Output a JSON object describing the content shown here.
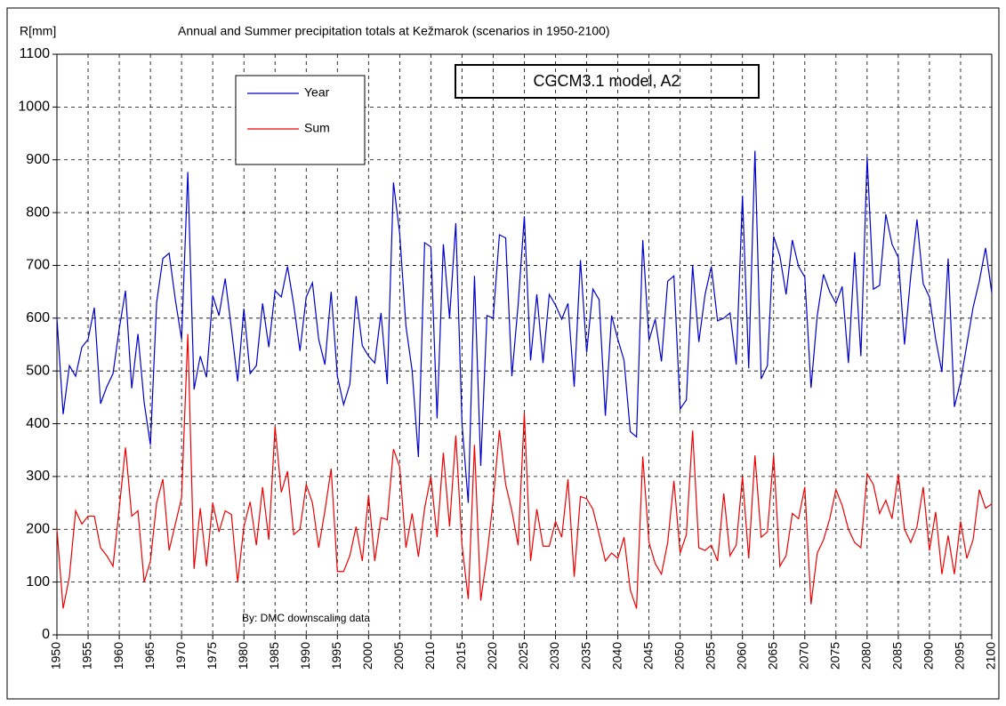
{
  "chart_data": {
    "type": "line",
    "title": "Annual and Summer precipitation totals at Kežmarok (scenarios in 1950-2100)",
    "y_label": "R[mm]",
    "model_label": "CGCM3.1 model, A2",
    "annotation": "By: DMC downscaling data",
    "grid": true,
    "legend": "top-left",
    "xlim": [
      1950,
      2100
    ],
    "ylim": [
      0,
      1100
    ],
    "xticks": [
      1950,
      1955,
      1960,
      1965,
      1970,
      1975,
      1980,
      1985,
      1990,
      1995,
      2000,
      2005,
      2010,
      2015,
      2020,
      2025,
      2030,
      2035,
      2040,
      2045,
      2050,
      2055,
      2060,
      2065,
      2070,
      2075,
      2080,
      2085,
      2090,
      2095,
      2100
    ],
    "yticks": [
      0,
      100,
      200,
      300,
      400,
      500,
      600,
      700,
      800,
      900,
      1000,
      1100
    ],
    "x": [
      1950,
      1951,
      1952,
      1953,
      1954,
      1955,
      1956,
      1957,
      1958,
      1959,
      1960,
      1961,
      1962,
      1963,
      1964,
      1965,
      1966,
      1967,
      1968,
      1969,
      1970,
      1971,
      1972,
      1973,
      1974,
      1975,
      1976,
      1977,
      1978,
      1979,
      1980,
      1981,
      1982,
      1983,
      1984,
      1985,
      1986,
      1987,
      1988,
      1989,
      1990,
      1991,
      1992,
      1993,
      1994,
      1995,
      1996,
      1997,
      1998,
      1999,
      2000,
      2001,
      2002,
      2003,
      2004,
      2005,
      2006,
      2007,
      2008,
      2009,
      2010,
      2011,
      2012,
      2013,
      2014,
      2015,
      2016,
      2017,
      2018,
      2019,
      2020,
      2021,
      2022,
      2023,
      2024,
      2025,
      2026,
      2027,
      2028,
      2029,
      2030,
      2031,
      2032,
      2033,
      2034,
      2035,
      2036,
      2037,
      2038,
      2039,
      2040,
      2041,
      2042,
      2043,
      2044,
      2045,
      2046,
      2047,
      2048,
      2049,
      2050,
      2051,
      2052,
      2053,
      2054,
      2055,
      2056,
      2057,
      2058,
      2059,
      2060,
      2061,
      2062,
      2063,
      2064,
      2065,
      2066,
      2067,
      2068,
      2069,
      2070,
      2071,
      2072,
      2073,
      2074,
      2075,
      2076,
      2077,
      2078,
      2079,
      2080,
      2081,
      2082,
      2083,
      2084,
      2085,
      2086,
      2087,
      2088,
      2089,
      2090,
      2091,
      2092,
      2093,
      2094,
      2095,
      2096,
      2097,
      2098,
      2099,
      2100
    ],
    "series": [
      {
        "name": "Year",
        "color": "#0000cc",
        "values": [
          600,
          418,
          510,
          490,
          545,
          560,
          620,
          438,
          470,
          495,
          580,
          652,
          467,
          570,
          440,
          360,
          630,
          713,
          723,
          635,
          560,
          877,
          465,
          528,
          488,
          643,
          605,
          675,
          580,
          480,
          618,
          495,
          510,
          628,
          545,
          652,
          640,
          698,
          625,
          538,
          640,
          667,
          560,
          512,
          650,
          490,
          436,
          475,
          642,
          548,
          528,
          515,
          610,
          475,
          857,
          760,
          585,
          500,
          337,
          743,
          735,
          410,
          740,
          600,
          780,
          400,
          250,
          680,
          320,
          605,
          600,
          758,
          752,
          490,
          625,
          793,
          520,
          645,
          515,
          645,
          625,
          598,
          628,
          470,
          710,
          535,
          655,
          635,
          415,
          605,
          560,
          520,
          385,
          375,
          748,
          558,
          598,
          518,
          670,
          680,
          428,
          445,
          700,
          555,
          645,
          698,
          595,
          600,
          610,
          512,
          832,
          505,
          917,
          485,
          510,
          755,
          718,
          645,
          748,
          698,
          678,
          468,
          605,
          683,
          650,
          628,
          660,
          515,
          725,
          528,
          905,
          655,
          662,
          797,
          740,
          715,
          550,
          680,
          787,
          665,
          640,
          560,
          498,
          713,
          432,
          480,
          550,
          620,
          670,
          733,
          648
        ]
      },
      {
        "name": "Sum",
        "color": "#ee0000",
        "values": [
          200,
          50,
          110,
          235,
          210,
          225,
          225,
          165,
          150,
          130,
          240,
          355,
          225,
          235,
          100,
          140,
          250,
          295,
          160,
          210,
          260,
          570,
          125,
          240,
          130,
          250,
          195,
          235,
          228,
          100,
          205,
          252,
          170,
          280,
          180,
          395,
          270,
          310,
          190,
          200,
          285,
          250,
          165,
          235,
          315,
          120,
          120,
          150,
          205,
          140,
          265,
          140,
          222,
          218,
          352,
          318,
          165,
          230,
          148,
          240,
          300,
          185,
          345,
          205,
          378,
          170,
          68,
          360,
          65,
          150,
          255,
          388,
          285,
          235,
          170,
          420,
          140,
          238,
          168,
          168,
          215,
          185,
          295,
          110,
          262,
          258,
          238,
          190,
          140,
          155,
          145,
          185,
          85,
          50,
          338,
          175,
          135,
          115,
          175,
          292,
          155,
          190,
          387,
          165,
          160,
          170,
          140,
          268,
          150,
          170,
          300,
          145,
          340,
          185,
          195,
          340,
          130,
          150,
          230,
          220,
          280,
          58,
          155,
          180,
          220,
          275,
          245,
          200,
          175,
          165,
          305,
          285,
          230,
          255,
          220,
          305,
          200,
          175,
          205,
          280,
          160,
          233,
          115,
          188,
          115,
          215,
          145,
          180,
          275,
          240,
          248
        ]
      }
    ]
  }
}
